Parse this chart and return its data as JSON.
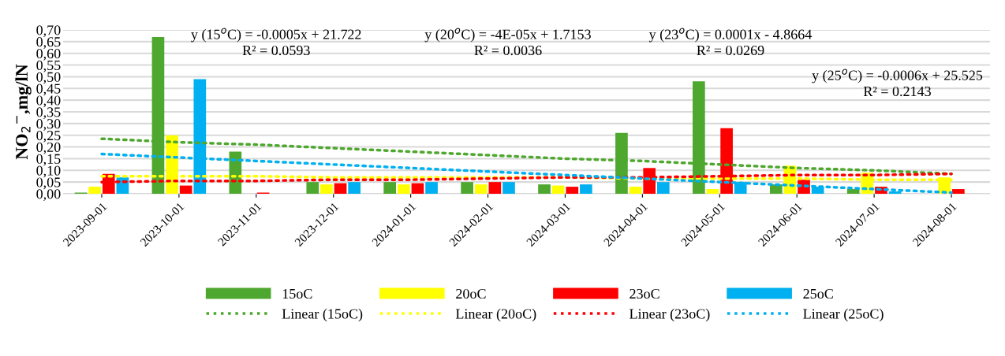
{
  "chart_data": {
    "type": "bar",
    "ylabel": "NO$_{2}$$^{−}$,mg/lN",
    "categories": [
      "2023-09-01",
      "2023-10-01",
      "2023-11-01",
      "2023-12-01",
      "2024-01-01",
      "2024-02-01",
      "2024-03-01",
      "2024-04-01",
      "2024-05-01",
      "2024-06-01",
      "2024-07-01",
      "2024-08-01"
    ],
    "series": [
      {
        "name": "15oC",
        "color": "#4ea72e",
        "values": [
          0.005,
          0.67,
          0.18,
          0.05,
          0.05,
          0.05,
          0.04,
          0.26,
          0.48,
          0.04,
          0.02,
          null
        ]
      },
      {
        "name": "20oC",
        "color": "#ffff00",
        "values": [
          0.03,
          0.25,
          null,
          0.04,
          0.04,
          0.04,
          0.035,
          0.03,
          0.02,
          0.12,
          0.09,
          0.07
        ]
      },
      {
        "name": "23oC",
        "color": "#ff0000",
        "values": [
          0.085,
          0.035,
          0.005,
          0.045,
          0.045,
          0.05,
          0.03,
          0.11,
          0.28,
          0.06,
          0.03,
          0.02
        ]
      },
      {
        "name": "25oC",
        "color": "#00b0f0",
        "values": [
          0.07,
          0.49,
          null,
          0.05,
          0.05,
          0.05,
          0.04,
          0.05,
          0.05,
          0.03,
          0.01,
          null
        ]
      },
      {
        "name": "Linear (15oC)",
        "type": "line",
        "line_style": "dotted",
        "color": "#4ea72e",
        "values": [
          0.235,
          0.22,
          0.21,
          0.195,
          0.18,
          0.165,
          0.15,
          0.14,
          0.125,
          0.11,
          0.1,
          0.085
        ]
      },
      {
        "name": "Linear (20oC)",
        "type": "line",
        "line_style": "dotted",
        "color": "#ffff00",
        "values": [
          0.075,
          0.075,
          0.075,
          0.07,
          0.07,
          0.07,
          0.07,
          0.065,
          0.065,
          0.065,
          0.06,
          0.06
        ]
      },
      {
        "name": "Linear (23oC)",
        "type": "line",
        "line_style": "dotted",
        "color": "#ff0000",
        "values": [
          0.05,
          0.055,
          0.055,
          0.06,
          0.06,
          0.065,
          0.07,
          0.07,
          0.075,
          0.08,
          0.08,
          0.085
        ]
      },
      {
        "name": "Linear (25oC)",
        "type": "line",
        "line_style": "dotted",
        "color": "#00b0f0",
        "values": [
          0.17,
          0.155,
          0.14,
          0.125,
          0.11,
          0.095,
          0.08,
          0.065,
          0.05,
          0.035,
          0.02,
          0.005
        ]
      }
    ],
    "ylim": [
      0,
      0.7
    ],
    "yticks": [
      {
        "value": 0,
        "label": "0,00"
      },
      {
        "value": 0.05,
        "label": "0,05"
      },
      {
        "value": 0.1,
        "label": "0,10"
      },
      {
        "value": 0.15,
        "label": "0,15"
      },
      {
        "value": 0.2,
        "label": "0,20"
      },
      {
        "value": 0.25,
        "label": "0,25"
      },
      {
        "value": 0.3,
        "label": "0,30"
      },
      {
        "value": 0.35,
        "label": "0,35"
      },
      {
        "value": 0.4,
        "label": "0,40"
      },
      {
        "value": 0.45,
        "label": "0,45"
      },
      {
        "value": 0.5,
        "label": "0,50"
      },
      {
        "value": 0.55,
        "label": "0,55"
      },
      {
        "value": 0.6,
        "label": "0,60"
      },
      {
        "value": 0.65,
        "label": "0,65"
      },
      {
        "value": 0.7,
        "label": "0,70"
      }
    ],
    "grid": "y",
    "legend": "bottom",
    "annotations": [
      "y (15$^{o}$C) = -0.0005x + 21.722\nR² = 0.0593",
      "y (20$^{o}$C) = -4E-05x + 1.7153\nR² = 0.0036",
      "y (23$^{o}$C) = 0.0001x - 4.8664\nR² = 0.0269",
      "y (25$^{o}$C) = -0.0006x + 25.525\nR² = 0.2143"
    ]
  }
}
